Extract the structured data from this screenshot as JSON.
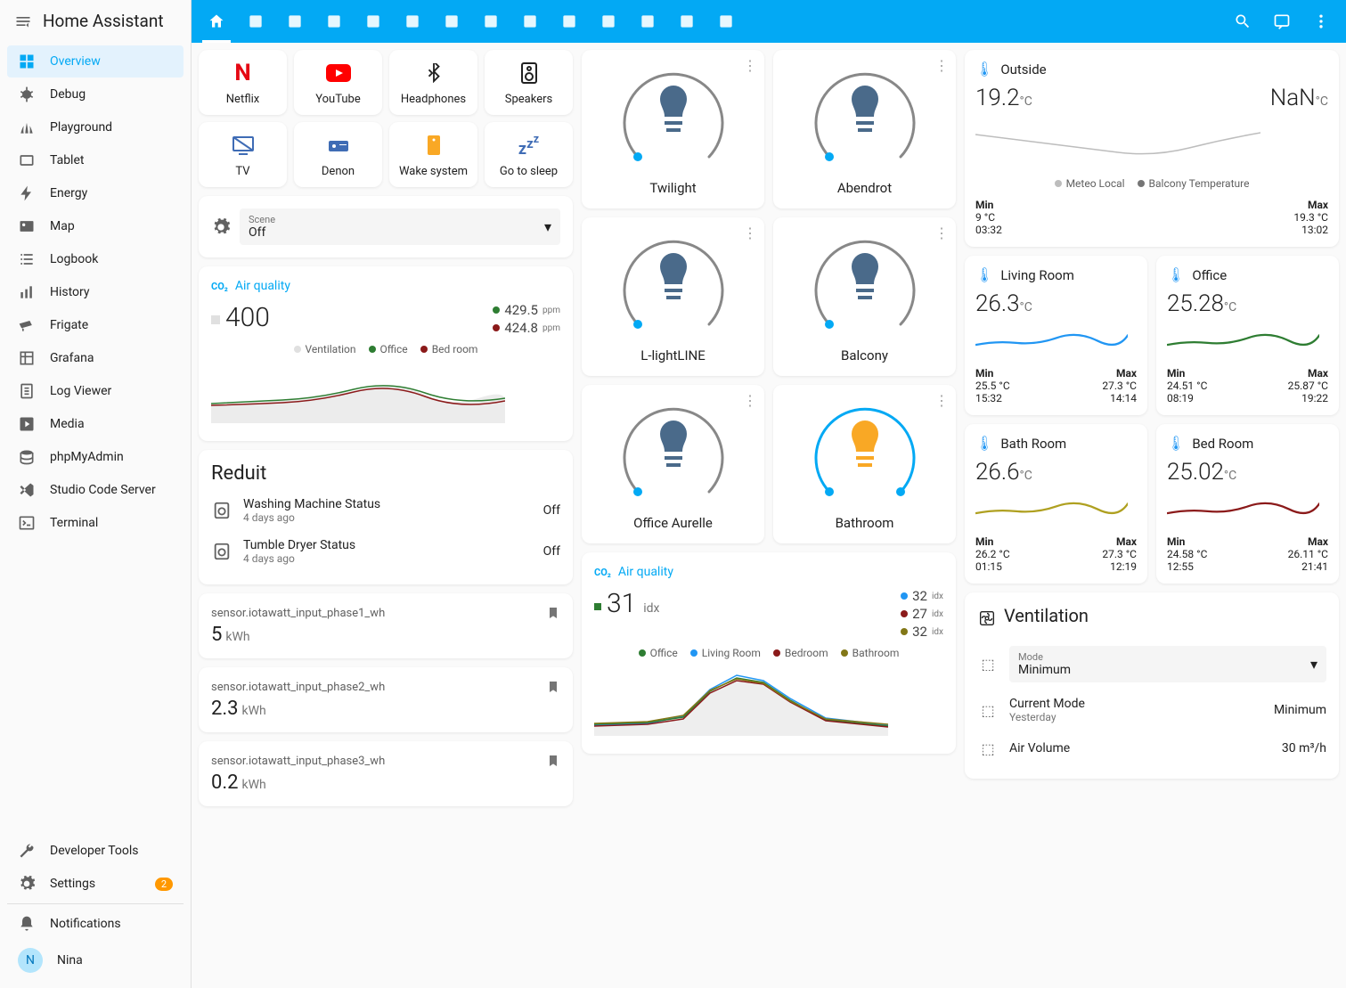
{
  "app_title": "Home Assistant",
  "colors": {
    "primary": "#03a9f4",
    "blue": "#2196f3",
    "green": "#2e7d32",
    "red": "#7b1d1d",
    "yellow": "#f9a825",
    "olive": "#827717",
    "darkred": "#8b1a1a",
    "grey": "#9e9e9e"
  },
  "sidebar": {
    "items": [
      {
        "label": "Overview",
        "active": true,
        "icon": "dashboard"
      },
      {
        "label": "Debug",
        "icon": "bug"
      },
      {
        "label": "Playground",
        "icon": "grass"
      },
      {
        "label": "Tablet",
        "icon": "tablet"
      },
      {
        "label": "Energy",
        "icon": "bolt"
      },
      {
        "label": "Map",
        "icon": "map"
      },
      {
        "label": "Logbook",
        "icon": "list"
      },
      {
        "label": "History",
        "icon": "chart"
      },
      {
        "label": "Frigate",
        "icon": "cctv"
      },
      {
        "label": "Grafana",
        "icon": "grafana"
      },
      {
        "label": "Log Viewer",
        "icon": "file"
      },
      {
        "label": "Media",
        "icon": "play"
      },
      {
        "label": "phpMyAdmin",
        "icon": "db"
      },
      {
        "label": "Studio Code Server",
        "icon": "vscode"
      },
      {
        "label": "Terminal",
        "icon": "terminal"
      }
    ],
    "footer": [
      {
        "label": "Developer Tools",
        "icon": "wrench"
      },
      {
        "label": "Settings",
        "icon": "gear",
        "badge": "2"
      }
    ],
    "notifications": "Notifications",
    "user": {
      "name": "Nina",
      "initial": "N"
    }
  },
  "shortcuts": [
    {
      "label": "Netflix",
      "icon": "N",
      "color": "#e50914"
    },
    {
      "label": "YouTube",
      "icon": "▶",
      "color": "#ff0000"
    },
    {
      "label": "Headphones",
      "icon": "bt",
      "color": "#212121"
    },
    {
      "label": "Speakers",
      "icon": "spk",
      "color": "#212121"
    },
    {
      "label": "TV",
      "icon": "tv",
      "color": "#3f6cb5"
    },
    {
      "label": "Denon",
      "icon": "amp",
      "color": "#3f6cb5"
    },
    {
      "label": "Wake system",
      "icon": "pc",
      "color": "#f9a825"
    },
    {
      "label": "Go to sleep",
      "icon": "zzz",
      "color": "#3f6cb5"
    }
  ],
  "scene": {
    "label": "Scene",
    "value": "Off"
  },
  "air1": {
    "title": "Air quality",
    "main_value": "400",
    "series": [
      {
        "value": "429.5",
        "unit": "ppm",
        "color": "#2e7d32"
      },
      {
        "value": "424.8",
        "unit": "ppm",
        "color": "#8b1a1a"
      }
    ],
    "legend": [
      {
        "label": "Ventilation",
        "color": "#e0e0e0"
      },
      {
        "label": "Office",
        "color": "#2e7d32"
      },
      {
        "label": "Bed room",
        "color": "#8b1a1a"
      }
    ]
  },
  "reduit": {
    "title": "Reduit",
    "rows": [
      {
        "name": "Washing Machine Status",
        "sub": "4 days ago",
        "state": "Off"
      },
      {
        "name": "Tumble Dryer Status",
        "sub": "4 days ago",
        "state": "Off"
      }
    ]
  },
  "sensors": [
    {
      "name": "sensor.iotawatt_input_phase1_wh",
      "value": "5",
      "unit": "kWh"
    },
    {
      "name": "sensor.iotawatt_input_phase2_wh",
      "value": "2.3",
      "unit": "kWh"
    },
    {
      "name": "sensor.iotawatt_input_phase3_wh",
      "value": "0.2",
      "unit": "kWh"
    }
  ],
  "lights": [
    {
      "name": "Twilight",
      "on": false
    },
    {
      "name": "Abendrot",
      "on": false
    },
    {
      "name": "L-lightLINE",
      "on": false
    },
    {
      "name": "Balcony",
      "on": false
    },
    {
      "name": "Office Aurelle",
      "on": false
    },
    {
      "name": "Bathroom",
      "on": true
    }
  ],
  "air2": {
    "title": "Air quality",
    "main_value": "31",
    "main_unit": "idx",
    "series": [
      {
        "value": "32",
        "unit": "idx",
        "color": "#2196f3"
      },
      {
        "value": "27",
        "unit": "idx",
        "color": "#8b1a1a"
      },
      {
        "value": "32",
        "unit": "idx",
        "color": "#827717"
      }
    ],
    "legend": [
      {
        "label": "Office",
        "color": "#2e7d32"
      },
      {
        "label": "Living Room",
        "color": "#2196f3"
      },
      {
        "label": "Bedroom",
        "color": "#8b1a1a"
      },
      {
        "label": "Bathroom",
        "color": "#827717"
      }
    ]
  },
  "outside": {
    "title": "Outside",
    "val1": "19.2",
    "unit": "°C",
    "val2": "NaN",
    "unit2": "°C",
    "legend": [
      {
        "label": "Meteo Local",
        "color": "#bdbdbd"
      },
      {
        "label": "Balcony Temperature",
        "color": "#757575"
      }
    ],
    "min": {
      "label": "Min",
      "val": "9 °C",
      "time": "03:32"
    },
    "max": {
      "label": "Max",
      "val": "19.3 °C",
      "time": "13:02"
    }
  },
  "temps": [
    {
      "title": "Living Room",
      "value": "26.3",
      "color": "#2196f3",
      "min_v": "25.5 °C",
      "min_t": "15:32",
      "max_v": "27.3 °C",
      "max_t": "14:14"
    },
    {
      "title": "Office",
      "value": "25.28",
      "color": "#2e7d32",
      "min_v": "24.51 °C",
      "min_t": "08:19",
      "max_v": "25.87 °C",
      "max_t": "19:22"
    },
    {
      "title": "Bath Room",
      "value": "26.6",
      "color": "#afa020",
      "min_v": "26.2 °C",
      "min_t": "01:15",
      "max_v": "27.3 °C",
      "max_t": "12:19"
    },
    {
      "title": "Bed Room",
      "value": "25.02",
      "color": "#8b1a1a",
      "min_v": "24.58 °C",
      "min_t": "12:55",
      "max_v": "26.11 °C",
      "max_t": "21:41"
    }
  ],
  "ventilation": {
    "title": "Ventilation",
    "mode_label": "Mode",
    "mode_value": "Minimum",
    "rows": [
      {
        "name": "Current Mode",
        "sub": "Yesterday",
        "state": "Minimum"
      },
      {
        "name": "Air Volume",
        "sub": "",
        "state": "30 m³/h"
      }
    ]
  },
  "labels": {
    "min": "Min",
    "max": "Max"
  }
}
